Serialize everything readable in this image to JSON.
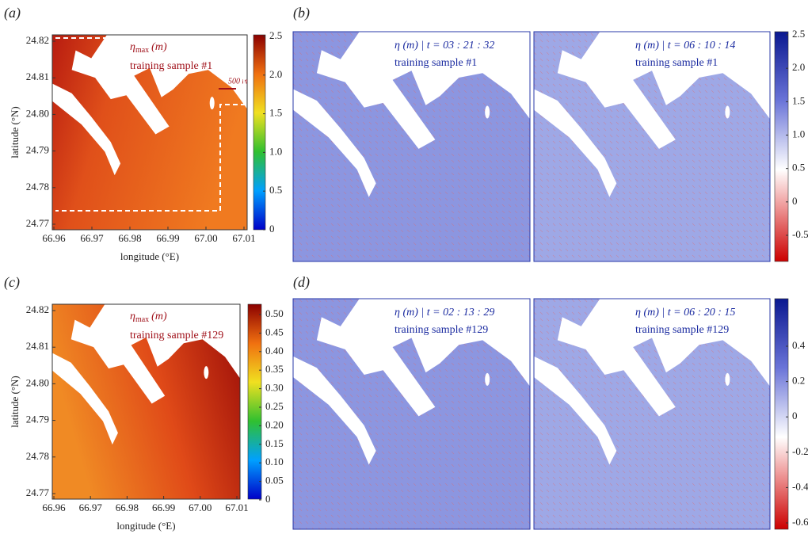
{
  "panels": [
    {
      "label": "(a)",
      "title": {
        "symbol": "η",
        "subscript": "max",
        "unit": "(m)"
      },
      "sample": "training sample #1",
      "scale_bar": "500 m",
      "y_label": "latitude (°N)",
      "x_label": "longitude (°E)",
      "y_ticks": [
        "24.82",
        "24.81",
        "24.80",
        "24.79",
        "24.78",
        "24.77"
      ],
      "x_ticks": [
        "66.96",
        "66.97",
        "66.98",
        "66.99",
        "67.00",
        "67.01"
      ],
      "colorbar_ticks": [
        "2.5",
        "2.0",
        "1.5",
        "1.0",
        "0.5",
        "0"
      ]
    },
    {
      "label": "(b)",
      "maps": [
        {
          "title": "η (m) | t = 03 : 21 : 32",
          "sample": "training sample #1"
        },
        {
          "title": "η (m) | t = 06 : 10 : 14",
          "sample": "training sample #1"
        }
      ],
      "colorbar_ticks": [
        "2.5",
        "2.0",
        "1.5",
        "1.0",
        "0.5",
        "0",
        "-0.5"
      ]
    },
    {
      "label": "(c)",
      "title": {
        "symbol": "η",
        "subscript": "max",
        "unit": "(m)"
      },
      "sample": "training sample #129",
      "y_label": "latitude (°N)",
      "x_label": "longitude (°E)",
      "y_ticks": [
        "24.82",
        "24.81",
        "24.80",
        "24.79",
        "24.78",
        "24.77"
      ],
      "x_ticks": [
        "66.96",
        "66.97",
        "66.98",
        "66.99",
        "67.00",
        "67.01"
      ],
      "colorbar_ticks": [
        "0.50",
        "0.45",
        "0.40",
        "0.35",
        "0.30",
        "0.25",
        "0.20",
        "0.15",
        "0.10",
        "0.05",
        "0"
      ]
    },
    {
      "label": "(d)",
      "maps": [
        {
          "title": "η (m) | t = 02 : 13 : 29",
          "sample": "training sample #129"
        },
        {
          "title": "η (m) | t = 06 : 20 : 15",
          "sample": "training sample #129"
        }
      ],
      "colorbar_ticks": [
        "0.4",
        "0.2",
        "0",
        "-0.2",
        "-0.4",
        "-0.6"
      ]
    }
  ]
}
